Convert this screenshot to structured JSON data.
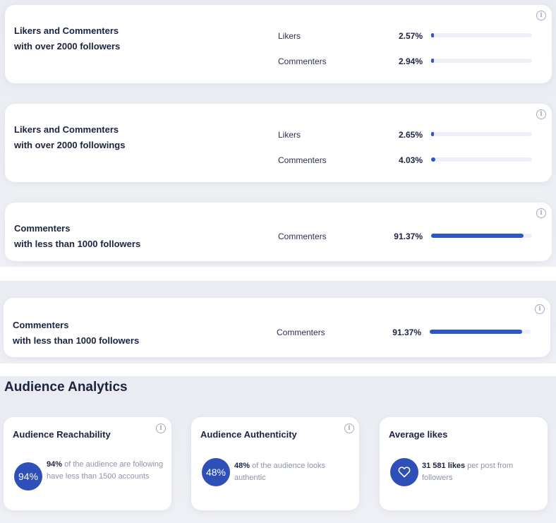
{
  "metric_cards": [
    {
      "title_line1": "Likers and Commenters",
      "title_line2": "with over 2000 followers",
      "rows": [
        {
          "label": "Likers",
          "value": "2.57%",
          "percent": 2.57
        },
        {
          "label": "Commenters",
          "value": "2.94%",
          "percent": 2.94
        }
      ]
    },
    {
      "title_line1": "Likers and Commenters",
      "title_line2": "with over 2000 followings",
      "rows": [
        {
          "label": "Likers",
          "value": "2.65%",
          "percent": 2.65
        },
        {
          "label": "Commenters",
          "value": "4.03%",
          "percent": 4.03
        }
      ]
    },
    {
      "title_line1": "Commenters",
      "title_line2": "with less than 1000 followers",
      "rows": [
        {
          "label": "Commenters",
          "value": "91.37%",
          "percent": 91.37
        }
      ]
    },
    {
      "title_line1": "Commenters",
      "title_line2": "with less than 1000 followers",
      "rows": [
        {
          "label": "Commenters",
          "value": "91.37%",
          "percent": 91.37
        }
      ]
    }
  ],
  "audience": {
    "section_title": "Audience Analytics",
    "cards": [
      {
        "title": "Audience Reachability",
        "badge": "94%",
        "highlight": "94%",
        "text": " of the audience are following have less than 1500 accounts"
      },
      {
        "title": "Audience Authenticity",
        "badge": "48%",
        "highlight": "48%",
        "text": " of the audience looks authentic"
      },
      {
        "title": "Average likes",
        "icon": "heart-icon",
        "highlight": "31 581 likes",
        "text": " per post from followers"
      }
    ]
  },
  "info_glyph": "i",
  "colors": {
    "accent": "#2d56c9",
    "badge": "#2d4fb7",
    "background_band": "#e9ecf2",
    "track": "#edf0f6"
  }
}
